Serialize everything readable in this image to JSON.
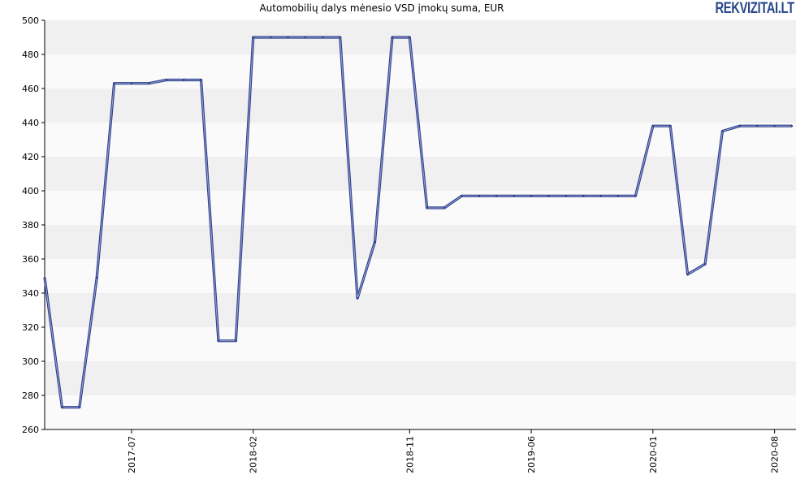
{
  "logo": {
    "main": "REKVIZITAI",
    "tld": ".LT"
  },
  "chart_data": {
    "type": "line",
    "title": "Automobilių dalys mėnesio VSD įmokų suma, EUR",
    "xlabel": "",
    "ylabel": "",
    "ylim": [
      260,
      500
    ],
    "yticks": [
      260,
      280,
      300,
      320,
      340,
      360,
      380,
      400,
      420,
      440,
      460,
      480,
      500
    ],
    "xtick_labels": [
      "2017-07",
      "2018-02",
      "2018-11",
      "2019-06",
      "2020-01",
      "2020-08"
    ],
    "x": [
      "2017-02",
      "2017-03",
      "2017-04",
      "2017-05",
      "2017-06",
      "2017-07",
      "2017-08",
      "2017-09",
      "2017-10",
      "2017-11",
      "2017-12",
      "2018-01",
      "2018-02",
      "2018-03",
      "2018-04",
      "2018-05",
      "2018-06",
      "2018-07",
      "2018-08",
      "2018-09",
      "2018-10",
      "2018-11",
      "2018-12",
      "2019-01",
      "2019-02",
      "2019-03",
      "2019-04",
      "2019-05",
      "2019-06",
      "2019-07",
      "2019-08",
      "2019-09",
      "2019-10",
      "2019-11",
      "2019-12",
      "2020-01",
      "2020-02",
      "2020-03",
      "2020-04",
      "2020-05",
      "2020-06",
      "2020-07",
      "2020-08",
      "2020-09"
    ],
    "series": [
      {
        "values": [
          349,
          273,
          273,
          349,
          463,
          463,
          463,
          465,
          465,
          465,
          312,
          312,
          490,
          490,
          490,
          490,
          490,
          490,
          337,
          370,
          490,
          490,
          390,
          390,
          397,
          397,
          397,
          397,
          397,
          397,
          397,
          397,
          397,
          397,
          397,
          438,
          438,
          351,
          357,
          435,
          438,
          438,
          438,
          438
        ],
        "color": "#4a5ba8"
      }
    ],
    "grid": true,
    "band_colors": [
      "#f0f0f0",
      "#fafafa"
    ]
  }
}
